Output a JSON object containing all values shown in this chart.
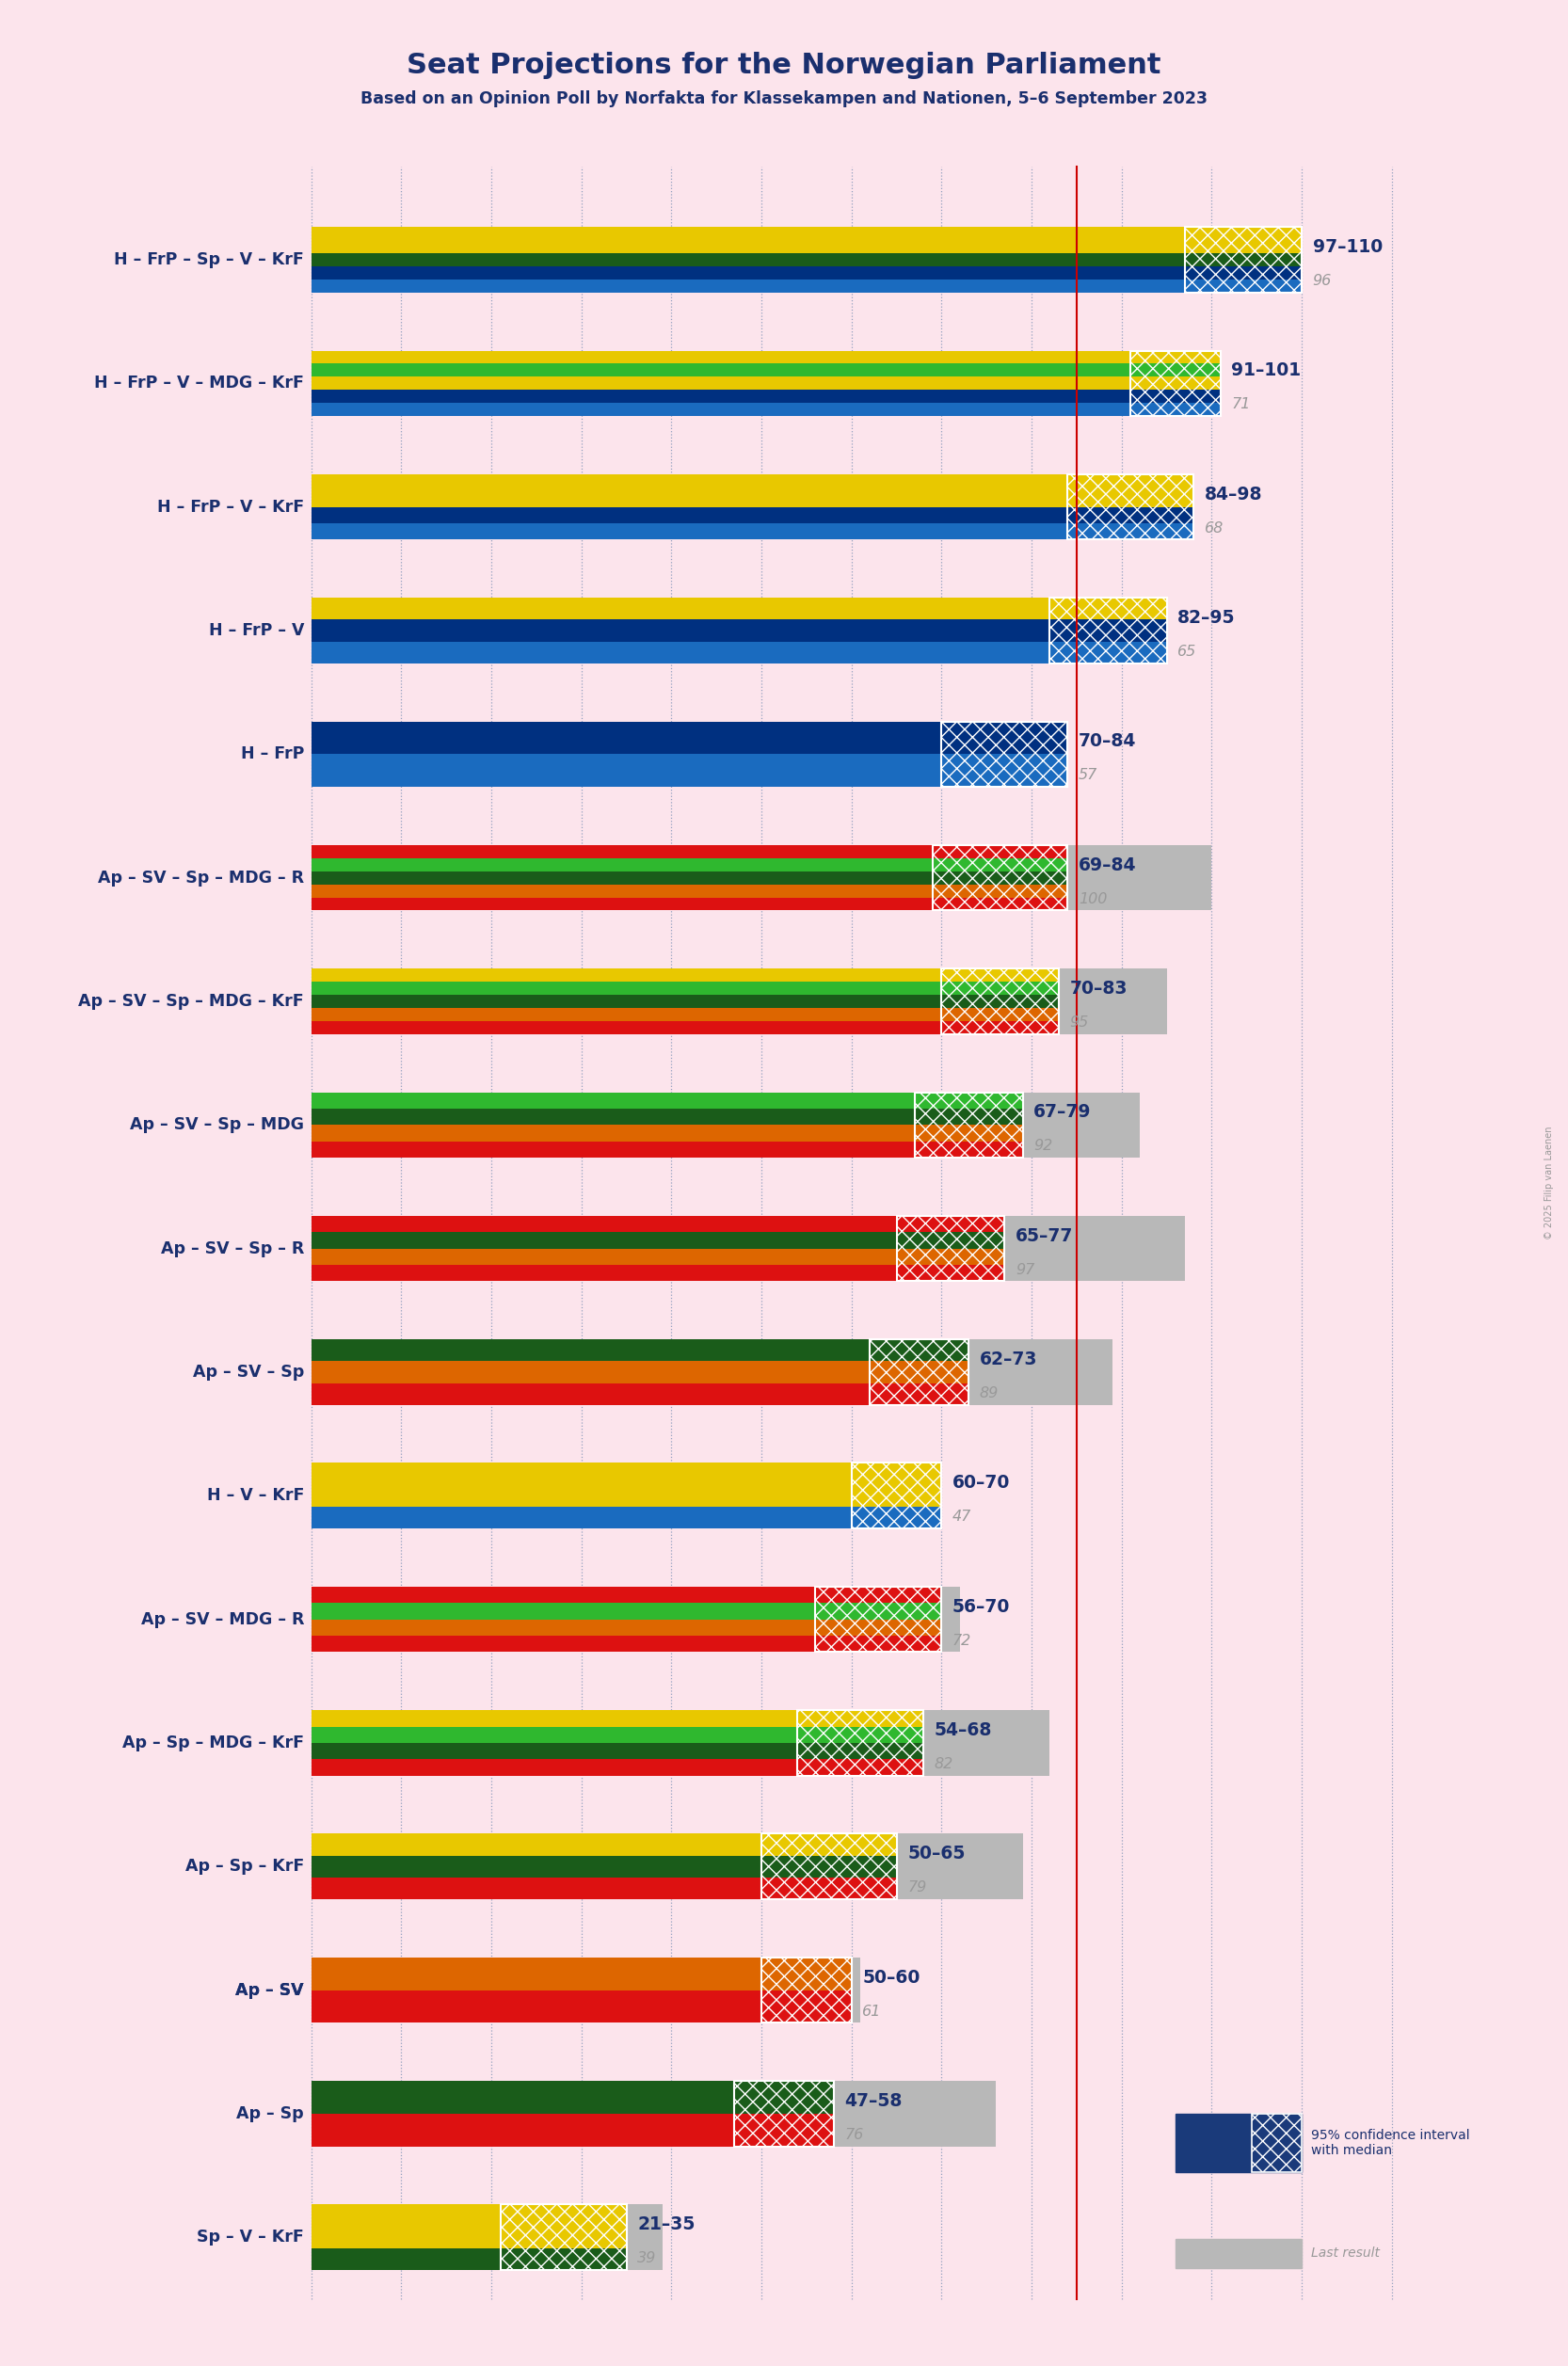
{
  "title": "Seat Projections for the Norwegian Parliament",
  "subtitle": "Based on an Opinion Poll by Norfakta for Klassekampen and Nationen, 5–6 September 2023",
  "copyright": "© 2025 Filip van Laenen",
  "background_color": "#fce4ec",
  "majority_line": 85,
  "x_max": 120,
  "coalitions": [
    {
      "label": "H – FrP – Sp – V – KrF",
      "low": 97,
      "high": 110,
      "last": 96,
      "parties": [
        "H",
        "FrP",
        "Sp",
        "V",
        "KrF"
      ],
      "underline": false
    },
    {
      "label": "H – FrP – V – MDG – KrF",
      "low": 91,
      "high": 101,
      "last": 71,
      "parties": [
        "H",
        "FrP",
        "V",
        "MDG",
        "KrF"
      ],
      "underline": false
    },
    {
      "label": "H – FrP – V – KrF",
      "low": 84,
      "high": 98,
      "last": 68,
      "parties": [
        "H",
        "FrP",
        "V",
        "KrF"
      ],
      "underline": false
    },
    {
      "label": "H – FrP – V",
      "low": 82,
      "high": 95,
      "last": 65,
      "parties": [
        "H",
        "FrP",
        "V"
      ],
      "underline": false
    },
    {
      "label": "H – FrP",
      "low": 70,
      "high": 84,
      "last": 57,
      "parties": [
        "H",
        "FrP"
      ],
      "underline": false
    },
    {
      "label": "Ap – SV – Sp – MDG – R",
      "low": 69,
      "high": 84,
      "last": 100,
      "parties": [
        "Ap",
        "SV",
        "Sp",
        "MDG",
        "R"
      ],
      "underline": false
    },
    {
      "label": "Ap – SV – Sp – MDG – KrF",
      "low": 70,
      "high": 83,
      "last": 95,
      "parties": [
        "Ap",
        "SV",
        "Sp",
        "MDG",
        "KrF"
      ],
      "underline": false
    },
    {
      "label": "Ap – SV – Sp – MDG",
      "low": 67,
      "high": 79,
      "last": 92,
      "parties": [
        "Ap",
        "SV",
        "Sp",
        "MDG"
      ],
      "underline": false
    },
    {
      "label": "Ap – SV – Sp – R",
      "low": 65,
      "high": 77,
      "last": 97,
      "parties": [
        "Ap",
        "SV",
        "Sp",
        "R"
      ],
      "underline": false
    },
    {
      "label": "Ap – SV – Sp",
      "low": 62,
      "high": 73,
      "last": 89,
      "parties": [
        "Ap",
        "SV",
        "Sp"
      ],
      "underline": false
    },
    {
      "label": "H – V – KrF",
      "low": 60,
      "high": 70,
      "last": 47,
      "parties": [
        "H",
        "V",
        "KrF"
      ],
      "underline": false
    },
    {
      "label": "Ap – SV – MDG – R",
      "low": 56,
      "high": 70,
      "last": 72,
      "parties": [
        "Ap",
        "SV",
        "MDG",
        "R"
      ],
      "underline": false
    },
    {
      "label": "Ap – Sp – MDG – KrF",
      "low": 54,
      "high": 68,
      "last": 82,
      "parties": [
        "Ap",
        "Sp",
        "MDG",
        "KrF"
      ],
      "underline": false
    },
    {
      "label": "Ap – Sp – KrF",
      "low": 50,
      "high": 65,
      "last": 79,
      "parties": [
        "Ap",
        "Sp",
        "KrF"
      ],
      "underline": false
    },
    {
      "label": "Ap – SV",
      "low": 50,
      "high": 60,
      "last": 61,
      "parties": [
        "Ap",
        "SV"
      ],
      "underline": true
    },
    {
      "label": "Ap – Sp",
      "low": 47,
      "high": 58,
      "last": 76,
      "parties": [
        "Ap",
        "Sp"
      ],
      "underline": false
    },
    {
      "label": "Sp – V – KrF",
      "low": 21,
      "high": 35,
      "last": 39,
      "parties": [
        "Sp",
        "V",
        "KrF"
      ],
      "underline": false
    }
  ],
  "party_colors": {
    "H": "#1a6bbf",
    "FrP": "#003080",
    "Sp": "#1a5c1a",
    "V": "#e8c800",
    "KrF": "#e8c800",
    "Ap": "#dd1111",
    "SV": "#dd6600",
    "MDG": "#2fb82f",
    "R": "#dd1111"
  },
  "label_color": "#1a2f6e",
  "gray_color": "#b8b8b8",
  "majority_color": "#cc0000",
  "grid_color": "#8899bb",
  "legend_ci_color": "#1a3a7a",
  "legend_last_color": "#999999"
}
